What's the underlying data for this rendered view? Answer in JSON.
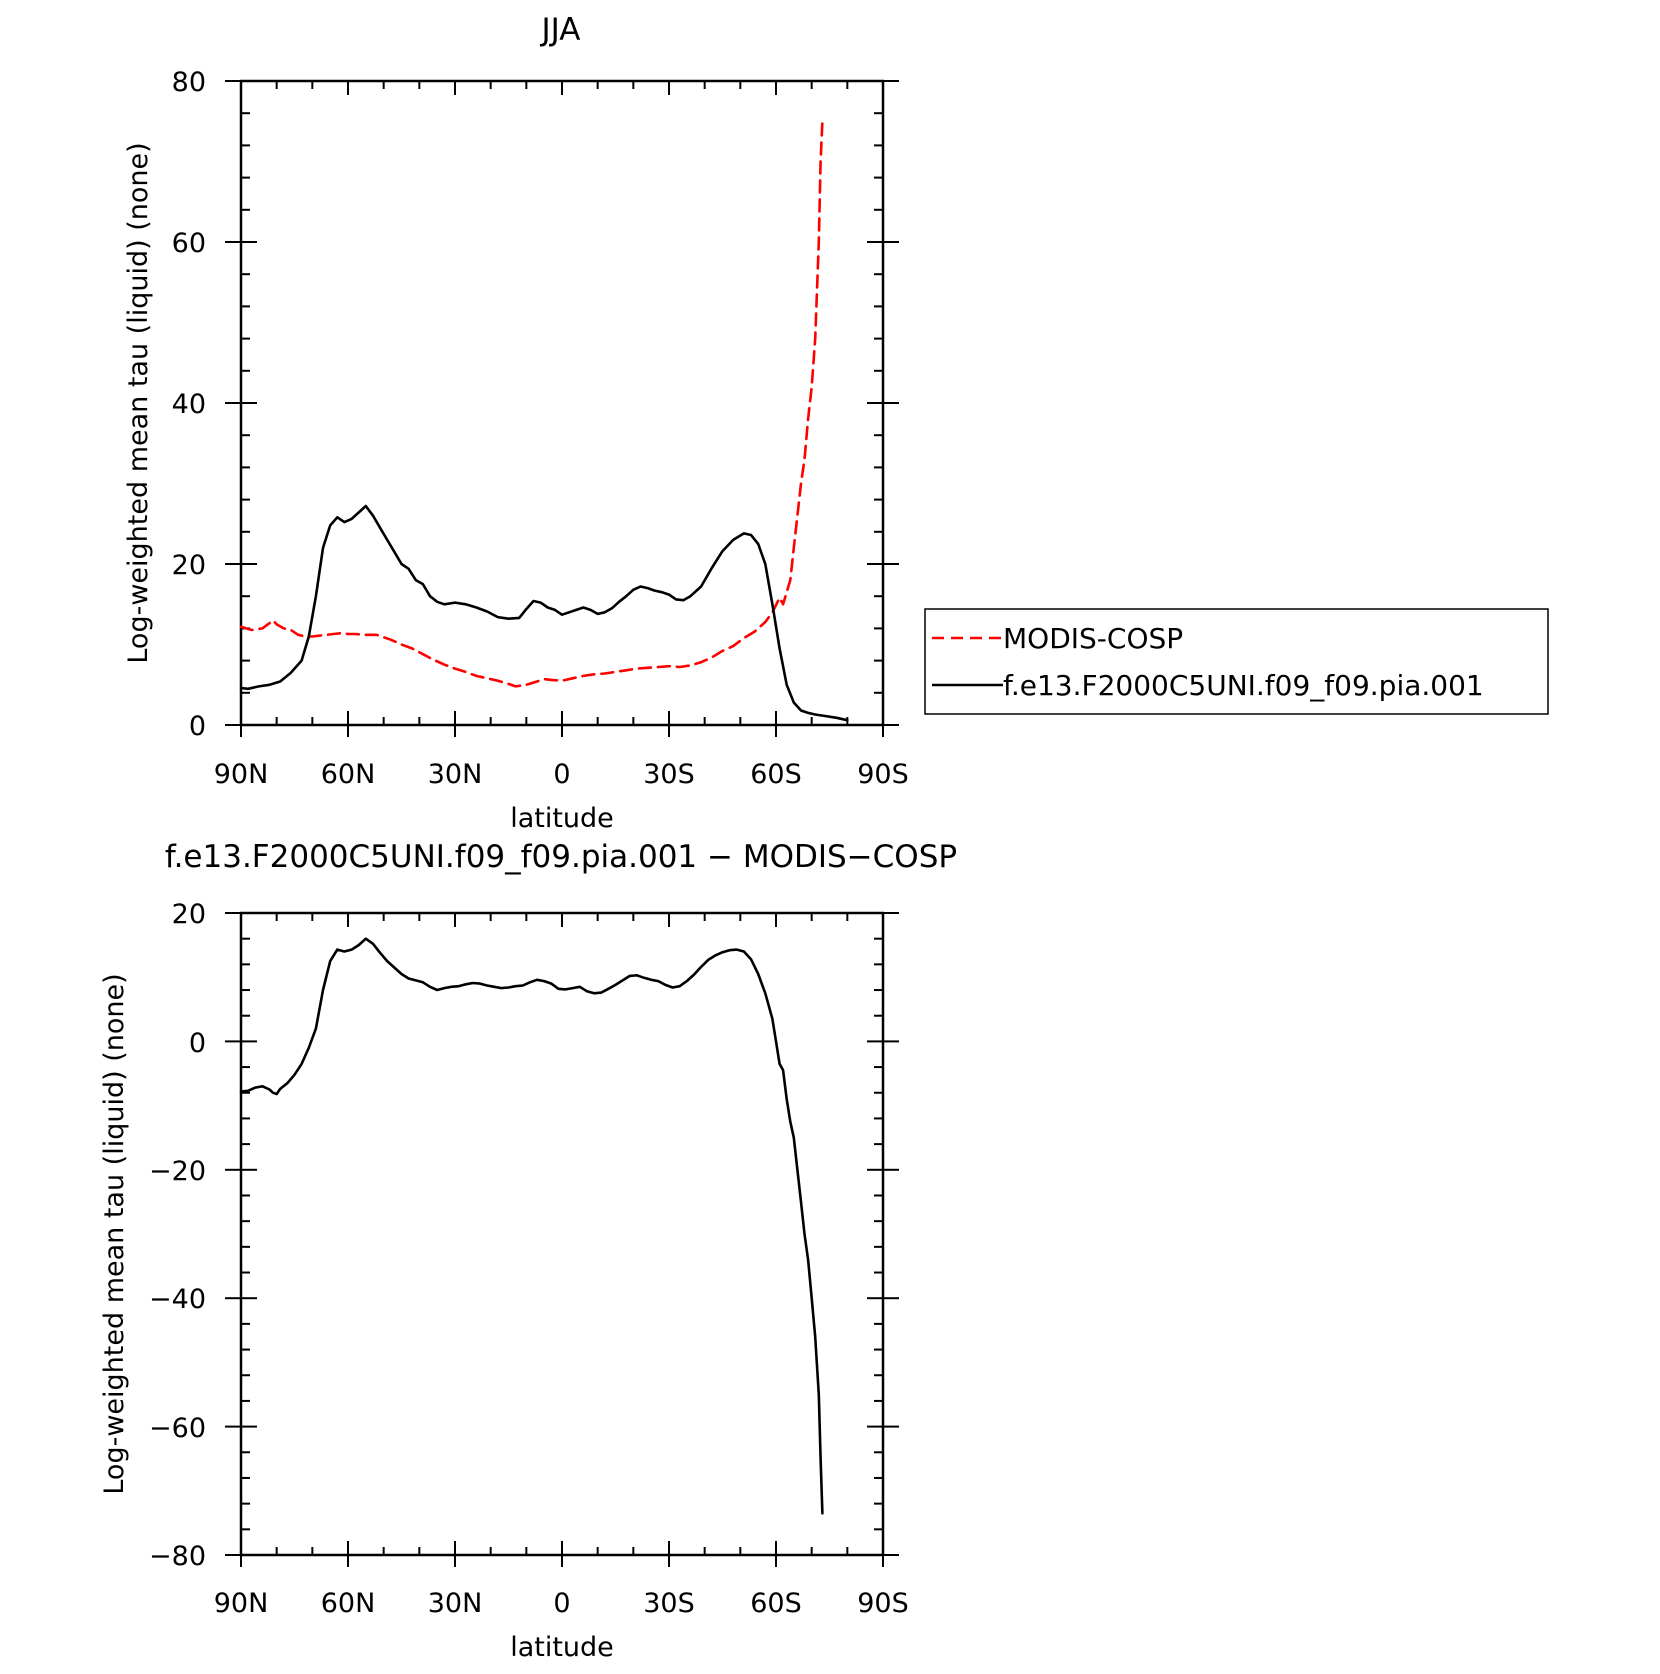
{
  "chart_data": [
    {
      "type": "line",
      "title": "JJA",
      "xlabel": "latitude",
      "ylabel": "Log-weighted mean tau (liquid) (none)",
      "xlim": [
        90,
        -90
      ],
      "ylim": [
        0,
        80
      ],
      "x_ticks": [
        90,
        60,
        30,
        0,
        -30,
        -60,
        -90
      ],
      "x_tick_labels": [
        "90N",
        "60N",
        "30N",
        "0",
        "30S",
        "60S",
        "90S"
      ],
      "y_ticks": [
        0,
        20,
        40,
        60,
        80
      ],
      "y_tick_labels": [
        "0",
        "20",
        "40",
        "60",
        "80"
      ],
      "legend_position": "right",
      "series": [
        {
          "name": "MODIS-COSP",
          "color": "#ff0000",
          "dash": "dashed",
          "x": [
            90,
            87,
            84,
            81,
            80,
            78,
            76,
            74,
            72,
            70,
            66,
            64,
            62,
            60,
            58,
            55,
            52,
            48,
            45,
            42,
            39,
            36,
            33,
            30,
            27,
            24,
            21,
            18,
            15,
            13,
            10,
            7,
            5,
            3,
            0,
            -3,
            -6,
            -9,
            -12,
            -15,
            -18,
            -21,
            -24,
            -27,
            -30,
            -33,
            -36,
            -39,
            -42,
            -45,
            -48,
            -51,
            -54,
            -57,
            -59,
            -61,
            -62,
            -63,
            -64,
            -65,
            -66,
            -67,
            -68,
            -69,
            -70,
            -71,
            -72,
            -72.5,
            -73
          ],
          "y": [
            12.2,
            11.8,
            12.0,
            13.0,
            12.5,
            12.0,
            11.8,
            11.2,
            11.0,
            11.0,
            11.2,
            11.3,
            11.4,
            11.3,
            11.3,
            11.2,
            11.2,
            10.6,
            10.0,
            9.5,
            8.8,
            8.1,
            7.5,
            7.0,
            6.6,
            6.1,
            5.8,
            5.5,
            5.1,
            4.8,
            5.0,
            5.4,
            5.7,
            5.6,
            5.5,
            5.8,
            6.1,
            6.3,
            6.4,
            6.6,
            6.8,
            7.0,
            7.1,
            7.2,
            7.3,
            7.2,
            7.4,
            7.8,
            8.4,
            9.2,
            9.8,
            10.8,
            11.6,
            12.8,
            14.0,
            15.8,
            15.0,
            16.5,
            18.0,
            22.0,
            26.0,
            30.0,
            33.0,
            38.0,
            42.0,
            48.0,
            60.0,
            70.0,
            75.0
          ]
        },
        {
          "name": "f.e13.F2000C5UNI.f09_f09.pia.001",
          "color": "#000000",
          "dash": "solid",
          "x": [
            90,
            88,
            85,
            82,
            79,
            76,
            73,
            71,
            69,
            67,
            65,
            63,
            61,
            59,
            57,
            55,
            53,
            51,
            49,
            47,
            45,
            43,
            41,
            39,
            37,
            35,
            33,
            30,
            27,
            24,
            21,
            18,
            15,
            12,
            10,
            8,
            6,
            4,
            2,
            0,
            -2,
            -4,
            -6,
            -8,
            -10,
            -12,
            -14,
            -16,
            -18,
            -20,
            -22,
            -24,
            -26,
            -28,
            -30,
            -32,
            -34,
            -36,
            -39,
            -42,
            -45,
            -48,
            -51,
            -53,
            -55,
            -57,
            -59,
            -61,
            -63,
            -65,
            -67,
            -69,
            -71,
            -74,
            -77,
            -80
          ],
          "y": [
            4.6,
            4.5,
            4.8,
            5.0,
            5.4,
            6.5,
            8.0,
            11.0,
            16.0,
            22.0,
            24.8,
            25.8,
            25.2,
            25.6,
            26.4,
            27.2,
            26.0,
            24.5,
            23.0,
            21.5,
            20.0,
            19.4,
            18.0,
            17.5,
            16.0,
            15.3,
            15.0,
            15.2,
            15.0,
            14.6,
            14.1,
            13.4,
            13.2,
            13.3,
            14.4,
            15.4,
            15.2,
            14.6,
            14.3,
            13.7,
            14.0,
            14.3,
            14.6,
            14.3,
            13.8,
            14.0,
            14.5,
            15.3,
            16.0,
            16.8,
            17.2,
            17.0,
            16.7,
            16.5,
            16.2,
            15.6,
            15.5,
            16.0,
            17.2,
            19.5,
            21.6,
            23.0,
            23.8,
            23.6,
            22.5,
            20.0,
            15.0,
            9.5,
            5.0,
            2.8,
            1.8,
            1.5,
            1.3,
            1.1,
            0.9,
            0.6
          ]
        }
      ]
    },
    {
      "type": "line",
      "title": "f.e13.F2000C5UNI.f09_f09.pia.001 − MODIS−COSP",
      "xlabel": "latitude",
      "ylabel": "Log-weighted mean tau (liquid) (none)",
      "xlim": [
        90,
        -90
      ],
      "ylim": [
        -80,
        20
      ],
      "x_ticks": [
        90,
        60,
        30,
        0,
        -30,
        -60,
        -90
      ],
      "x_tick_labels": [
        "90N",
        "60N",
        "30N",
        "0",
        "30S",
        "60S",
        "90S"
      ],
      "y_ticks": [
        20,
        0,
        -20,
        -40,
        -60,
        -80
      ],
      "y_tick_labels": [
        "20",
        "0",
        "−20",
        "−40",
        "−60",
        "−80"
      ],
      "series": [
        {
          "color": "#000000",
          "dash": "solid",
          "x": [
            90,
            88,
            86,
            84,
            82,
            81,
            80,
            79,
            77,
            75,
            73,
            71,
            69,
            67,
            65,
            63,
            61,
            59,
            57,
            55,
            53,
            51,
            49,
            47,
            45,
            43,
            41,
            39,
            37,
            35,
            33,
            31,
            29,
            27,
            25,
            23,
            21,
            19,
            17,
            15,
            13,
            11,
            9,
            7,
            5,
            3,
            1,
            -1,
            -3,
            -5,
            -7,
            -9,
            -11,
            -13,
            -15,
            -17,
            -19,
            -21,
            -23,
            -25,
            -27,
            -29,
            -31,
            -33,
            -35,
            -37,
            -39,
            -41,
            -43,
            -45,
            -47,
            -49,
            -51,
            -53,
            -55,
            -57,
            -59,
            -61,
            -62,
            -63,
            -64,
            -65,
            -66,
            -67,
            -68,
            -69,
            -70,
            -71,
            -72,
            -72.5,
            -73
          ],
          "y": [
            -7.8,
            -7.7,
            -7.2,
            -7.0,
            -7.5,
            -8.0,
            -8.2,
            -7.4,
            -6.5,
            -5.2,
            -3.5,
            -1.0,
            2.0,
            8.0,
            12.5,
            14.3,
            14.0,
            14.3,
            15.0,
            16.0,
            15.2,
            13.8,
            12.5,
            11.5,
            10.5,
            9.8,
            9.5,
            9.2,
            8.5,
            8.0,
            8.3,
            8.5,
            8.6,
            8.9,
            9.1,
            9.0,
            8.7,
            8.5,
            8.3,
            8.4,
            8.6,
            8.7,
            9.2,
            9.6,
            9.4,
            9.0,
            8.2,
            8.1,
            8.3,
            8.5,
            7.8,
            7.5,
            7.6,
            8.2,
            8.8,
            9.5,
            10.2,
            10.3,
            9.9,
            9.6,
            9.4,
            8.8,
            8.4,
            8.6,
            9.4,
            10.4,
            11.6,
            12.7,
            13.4,
            13.9,
            14.2,
            14.3,
            14.0,
            12.8,
            10.5,
            7.5,
            3.5,
            -3.5,
            -4.5,
            -9.0,
            -12.5,
            -15.0,
            -20.0,
            -25.0,
            -30.0,
            -34.0,
            -40.0,
            -46.0,
            -55.0,
            -65.0,
            -73.5
          ]
        }
      ]
    }
  ]
}
